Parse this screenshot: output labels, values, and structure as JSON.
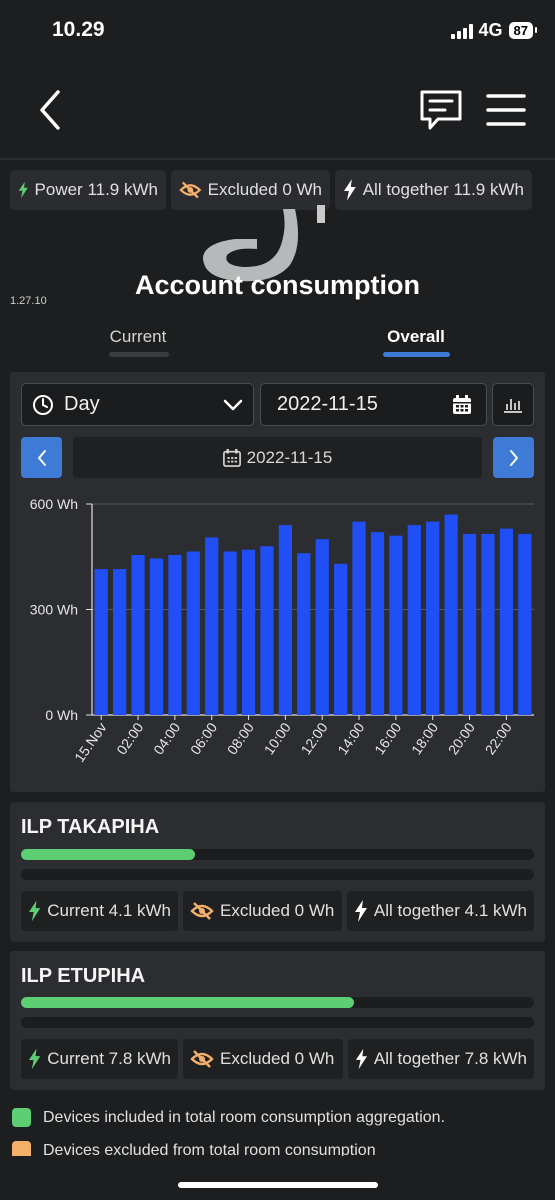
{
  "status": {
    "time": "10.29",
    "network": "4G",
    "battery": "87"
  },
  "header": {
    "back_icon": "chevron-left-icon",
    "chat_icon": "chat-bubble-icon",
    "menu_icon": "hamburger-menu-icon"
  },
  "summary": {
    "power": "Power 11.9 kWh",
    "excluded": "Excluded 0 Wh",
    "all_together": "All together 11.9 kWh"
  },
  "app": {
    "version": "1.27.10",
    "title": "Account consumption"
  },
  "tabs": [
    {
      "label": "Current",
      "active": false
    },
    {
      "label": "Overall",
      "active": true
    }
  ],
  "controls": {
    "period": "Day",
    "date": "2022-11-15",
    "nav_date": "2022-11-15"
  },
  "colors": {
    "bar": "#1f4ff5",
    "accent": "#3d7bd6",
    "green": "#5dcf72",
    "orange": "#f5b06a",
    "panel": "#2b2d30"
  },
  "chart_data": {
    "type": "bar",
    "categories": [
      "15.Nov",
      "01:00",
      "02:00",
      "03:00",
      "04:00",
      "05:00",
      "06:00",
      "07:00",
      "08:00",
      "09:00",
      "10:00",
      "11:00",
      "12:00",
      "13:00",
      "14:00",
      "15:00",
      "16:00",
      "17:00",
      "18:00",
      "19:00",
      "20:00",
      "21:00",
      "22:00",
      "23:00"
    ],
    "tick_labels": [
      "15.Nov",
      "02:00",
      "04:00",
      "06:00",
      "08:00",
      "10:00",
      "12:00",
      "14:00",
      "16:00",
      "18:00",
      "20:00",
      "22:00"
    ],
    "series": [
      {
        "values": [
          415,
          415,
          455,
          445,
          455,
          465,
          505,
          465,
          470,
          480,
          540,
          460,
          500,
          430,
          550,
          520,
          510,
          540,
          550,
          570,
          515,
          515,
          530,
          515
        ]
      }
    ],
    "y_ticks": [
      "600 Wh",
      "300 Wh",
      "0 Wh"
    ],
    "ylim": [
      0,
      600
    ],
    "grid": true
  },
  "cards": [
    {
      "title": "ILP TAKAPIHA",
      "progress": 0.34,
      "current": "Current 4.1 kWh",
      "excluded": "Excluded 0 Wh",
      "all_together": "All together 4.1 kWh"
    },
    {
      "title": "ILP ETUPIHA",
      "progress": 0.65,
      "current": "Current 7.8 kWh",
      "excluded": "Excluded 0 Wh",
      "all_together": "All together 7.8 kWh"
    }
  ],
  "legend": [
    {
      "label": "Devices included in total room consumption aggregation."
    },
    {
      "label": "Devices excluded from total room consumption"
    }
  ]
}
